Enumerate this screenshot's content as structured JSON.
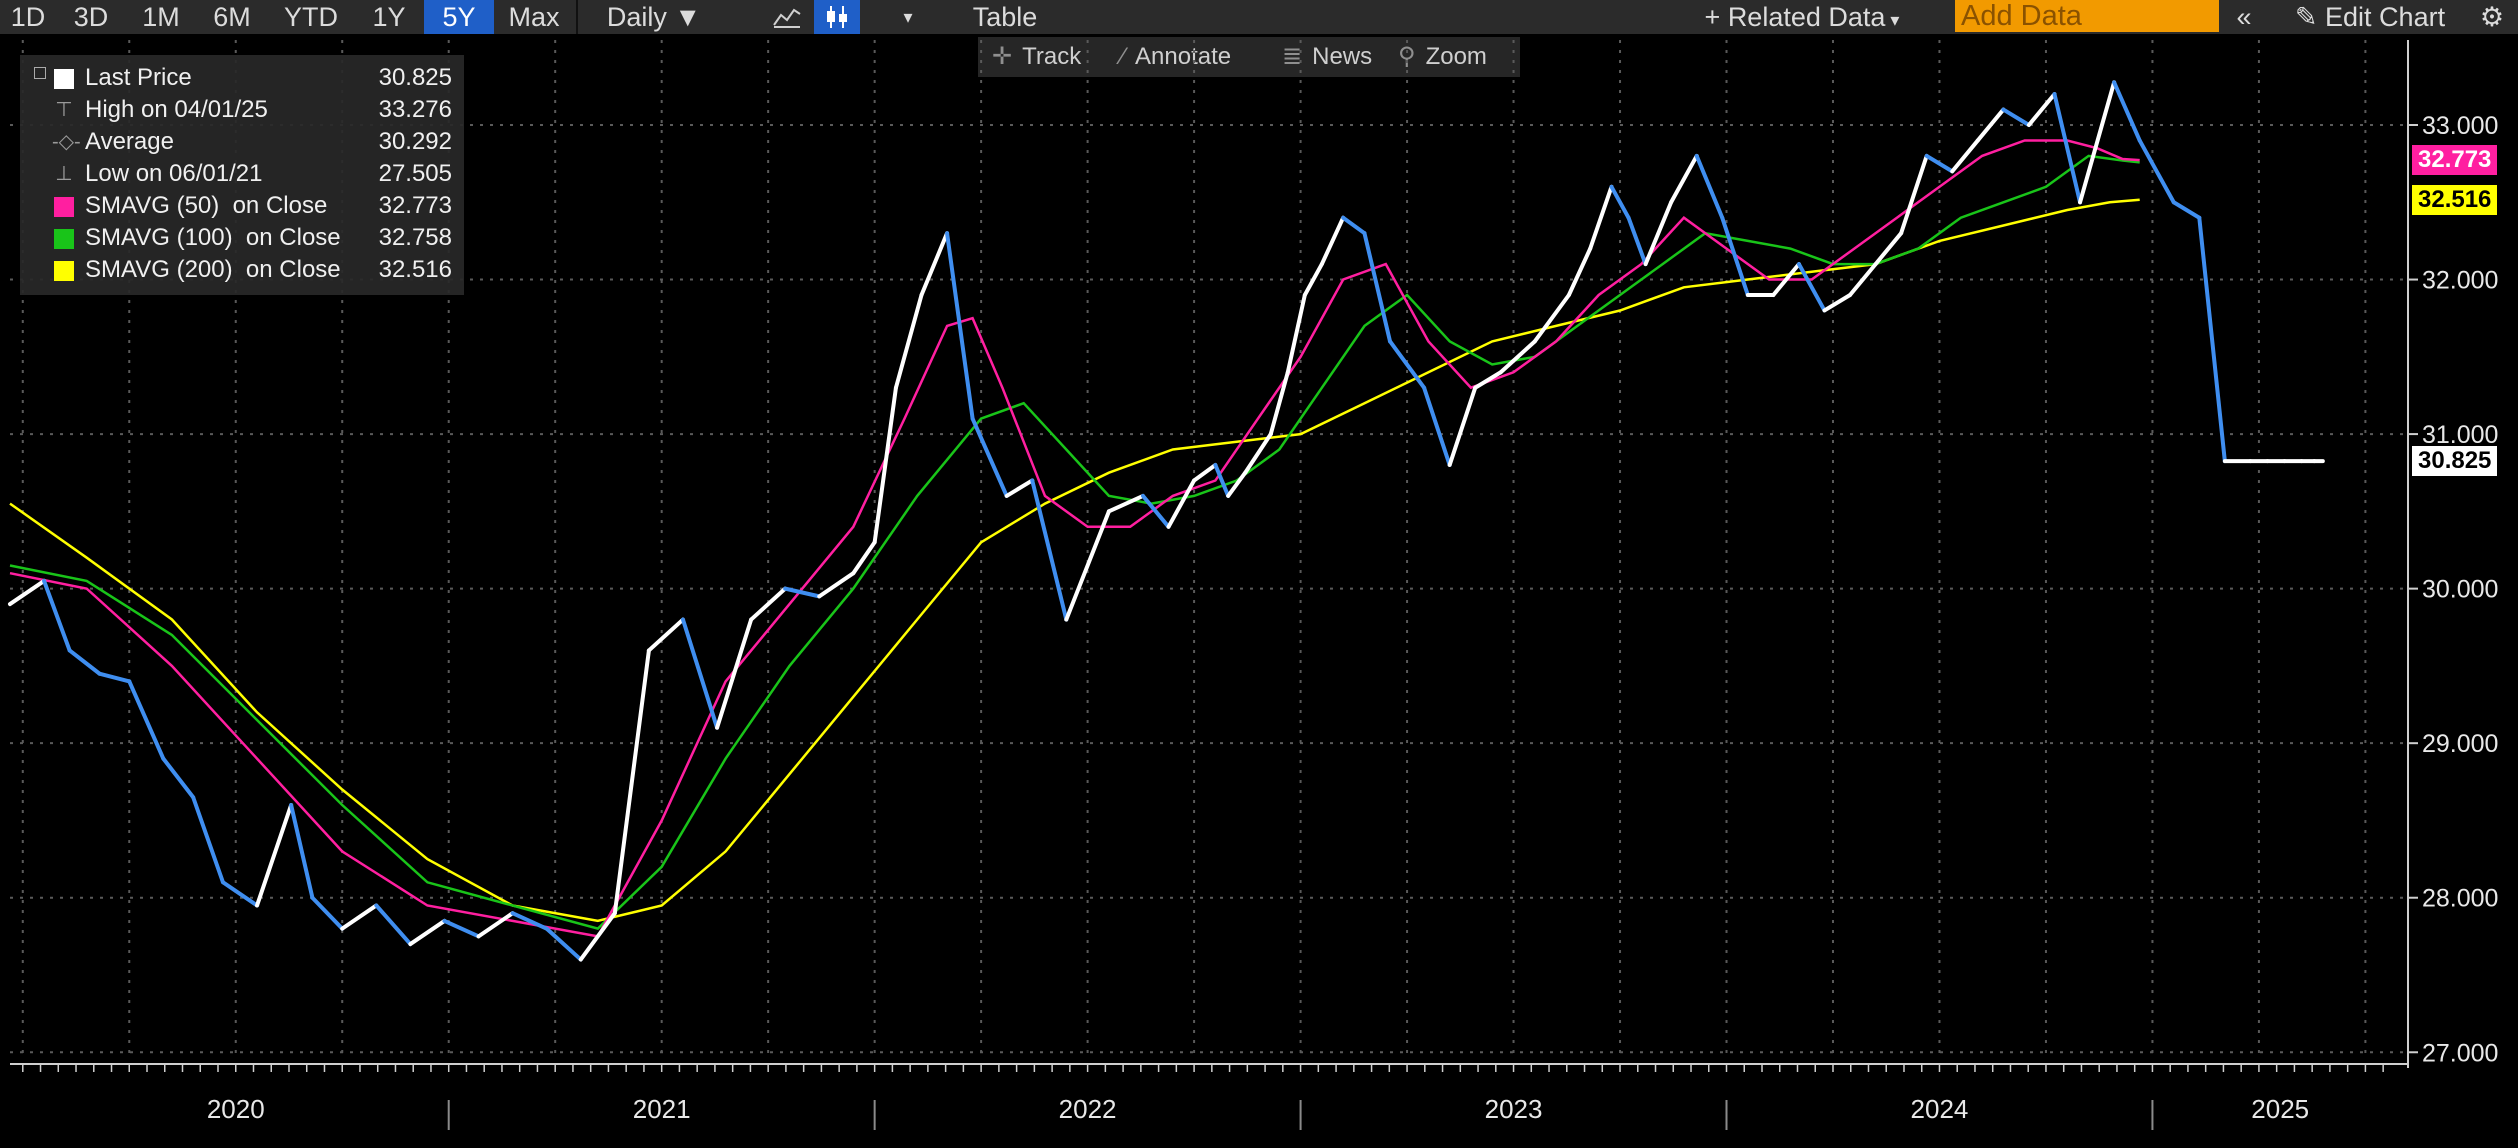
{
  "toolbar": {
    "ranges": [
      "1D",
      "3D",
      "1M",
      "6M",
      "YTD",
      "1Y",
      "5Y",
      "Max"
    ],
    "active_range": "5Y",
    "frequency": "Daily ▼",
    "table_label": "Table",
    "related_data_label": "Related Data",
    "add_data_placeholder": "Add Data",
    "edit_chart_label": "Edit Chart"
  },
  "subbar": {
    "track": "Track",
    "annotate": "Annotate",
    "news": "News",
    "zoom": "Zoom"
  },
  "legend": [
    {
      "label": "Last Price",
      "value": "30.825",
      "color": "#ffffff",
      "marker": "square"
    },
    {
      "label": "High on 04/01/25",
      "value": "33.276",
      "color": "#9a9a9a",
      "marker": "high"
    },
    {
      "label": "Average",
      "value": "30.292",
      "color": "#9a9a9a",
      "marker": "average"
    },
    {
      "label": "Low on 06/01/21",
      "value": "27.505",
      "color": "#9a9a9a",
      "marker": "low"
    },
    {
      "label": "SMAVG (50)  on Close",
      "value": "32.773",
      "color": "#ff1fa0",
      "marker": "square"
    },
    {
      "label": "SMAVG (100)  on Close",
      "value": "32.758",
      "color": "#19c419",
      "marker": "square"
    },
    {
      "label": "SMAVG (200)  on Close",
      "value": "32.516",
      "color": "#ffff00",
      "marker": "square"
    }
  ],
  "price_tags": [
    {
      "value": "32.773",
      "bg": "#ff1fa0",
      "fg": "#ffffff"
    },
    {
      "value": "32.516",
      "bg": "#ffff00",
      "fg": "#000000"
    },
    {
      "value": "30.825",
      "bg": "#ffffff",
      "fg": "#000000"
    }
  ],
  "chart_data": {
    "type": "line",
    "y_ticks": [
      "27.000",
      "28.000",
      "29.000",
      "30.000",
      "31.000",
      "32.000",
      "33.000"
    ],
    "ylim": [
      26.95,
      33.55
    ],
    "x_labels": [
      "2020",
      "2021",
      "2022",
      "2023",
      "2024",
      "2025"
    ],
    "xlim": [
      2019.72,
      2025.35
    ],
    "grid": true,
    "colors": {
      "price": "#ffffff",
      "price_down": "#3f8ef0",
      "sma50": "#ff1fa0",
      "sma100": "#19c419",
      "sma200": "#ffff00"
    },
    "series": [
      {
        "name": "Last Price",
        "key": "price",
        "x": [
          2019.72,
          2019.8,
          2019.86,
          2019.93,
          2020.0,
          2020.08,
          2020.15,
          2020.22,
          2020.3,
          2020.38,
          2020.43,
          2020.5,
          2020.58,
          2020.66,
          2020.74,
          2020.82,
          2020.9,
          2020.98,
          2021.06,
          2021.14,
          2021.22,
          2021.3,
          2021.38,
          2021.46,
          2021.54,
          2021.62,
          2021.7,
          2021.75,
          2021.8,
          2021.86,
          2021.92,
          2021.98,
          2022.06,
          2022.12,
          2022.2,
          2022.3,
          2022.38,
          2022.44,
          2022.5,
          2022.55,
          2022.58,
          2022.62,
          2022.68,
          2022.72,
          2022.76,
          2022.8,
          2022.85,
          2022.9,
          2022.96,
          2023.04,
          2023.1,
          2023.16,
          2023.22,
          2023.3,
          2023.38,
          2023.43,
          2023.48,
          2023.52,
          2023.56,
          2023.62,
          2023.68,
          2023.74,
          2023.8,
          2023.86,
          2023.92,
          2023.98,
          2024.04,
          2024.1,
          2024.16,
          2024.22,
          2024.28,
          2024.34,
          2024.4,
          2024.46,
          2024.52,
          2024.58,
          2024.66,
          2024.72,
          2024.8,
          2024.86,
          2024.92,
          2024.98,
          2025.02,
          2025.06,
          2025.1,
          2025.13,
          2025.15
        ],
        "y": [
          29.9,
          30.05,
          29.6,
          29.45,
          29.4,
          28.9,
          28.65,
          28.1,
          27.95,
          28.6,
          28.0,
          27.8,
          27.95,
          27.7,
          27.85,
          27.75,
          27.9,
          27.8,
          27.6,
          27.9,
          29.6,
          29.8,
          29.1,
          29.8,
          30.0,
          29.95,
          30.1,
          30.3,
          31.3,
          31.9,
          32.3,
          31.1,
          30.6,
          30.7,
          29.8,
          30.5,
          30.6,
          30.4,
          30.7,
          30.8,
          30.6,
          30.75,
          31.0,
          31.4,
          31.9,
          32.1,
          32.4,
          32.3,
          31.6,
          31.3,
          30.8,
          31.3,
          31.4,
          31.6,
          31.9,
          32.2,
          32.6,
          32.4,
          32.1,
          32.5,
          32.8,
          32.4,
          31.9,
          31.9,
          32.1,
          31.8,
          31.9,
          32.1,
          32.3,
          32.8,
          32.7,
          32.9,
          33.1,
          33.0,
          33.2,
          32.5,
          33.276,
          32.9,
          32.5,
          32.4,
          30.825,
          30.825,
          30.825,
          30.825,
          30.825,
          30.825,
          30.825
        ]
      },
      {
        "name": "SMAVG (50)  on Close",
        "key": "sma50",
        "x": [
          2019.72,
          2019.9,
          2020.1,
          2020.3,
          2020.5,
          2020.7,
          2020.9,
          2021.1,
          2021.25,
          2021.4,
          2021.55,
          2021.7,
          2021.82,
          2021.92,
          2021.98,
          2022.05,
          2022.15,
          2022.25,
          2022.35,
          2022.45,
          2022.55,
          2022.65,
          2022.75,
          2022.85,
          2022.95,
          2023.05,
          2023.15,
          2023.25,
          2023.35,
          2023.45,
          2023.55,
          2023.65,
          2023.75,
          2023.85,
          2023.95,
          2024.05,
          2024.15,
          2024.25,
          2024.35,
          2024.45,
          2024.55,
          2024.62,
          2024.68,
          2024.72
        ],
        "y": [
          30.1,
          30.0,
          29.5,
          28.9,
          28.3,
          27.95,
          27.85,
          27.75,
          28.5,
          29.4,
          29.9,
          30.4,
          31.1,
          31.7,
          31.75,
          31.3,
          30.6,
          30.4,
          30.4,
          30.6,
          30.7,
          31.1,
          31.5,
          32.0,
          32.1,
          31.6,
          31.3,
          31.4,
          31.6,
          31.9,
          32.1,
          32.4,
          32.2,
          32.0,
          32.0,
          32.2,
          32.4,
          32.6,
          32.8,
          32.9,
          32.9,
          32.85,
          32.78,
          32.773
        ]
      },
      {
        "name": "SMAVG (100)  on Close",
        "key": "sma100",
        "x": [
          2019.72,
          2019.9,
          2020.1,
          2020.3,
          2020.5,
          2020.7,
          2020.9,
          2021.1,
          2021.25,
          2021.4,
          2021.55,
          2021.7,
          2021.85,
          2022.0,
          2022.1,
          2022.2,
          2022.3,
          2022.4,
          2022.5,
          2022.6,
          2022.7,
          2022.8,
          2022.9,
          2023.0,
          2023.1,
          2023.2,
          2023.3,
          2023.4,
          2023.5,
          2023.6,
          2023.7,
          2023.8,
          2023.9,
          2024.0,
          2024.1,
          2024.2,
          2024.3,
          2024.4,
          2024.5,
          2024.6,
          2024.68,
          2024.72
        ],
        "y": [
          30.15,
          30.05,
          29.7,
          29.15,
          28.6,
          28.1,
          27.95,
          27.8,
          28.2,
          28.9,
          29.5,
          30.0,
          30.6,
          31.1,
          31.2,
          30.9,
          30.6,
          30.55,
          30.6,
          30.7,
          30.9,
          31.3,
          31.7,
          31.9,
          31.6,
          31.45,
          31.5,
          31.7,
          31.9,
          32.1,
          32.3,
          32.25,
          32.2,
          32.1,
          32.1,
          32.2,
          32.4,
          32.5,
          32.6,
          32.8,
          32.77,
          32.758
        ]
      },
      {
        "name": "SMAVG (200)  on Close",
        "key": "sma200",
        "x": [
          2019.72,
          2019.9,
          2020.1,
          2020.3,
          2020.5,
          2020.7,
          2020.9,
          2021.1,
          2021.25,
          2021.4,
          2021.55,
          2021.7,
          2021.85,
          2022.0,
          2022.15,
          2022.3,
          2022.45,
          2022.6,
          2022.75,
          2022.9,
          2023.05,
          2023.2,
          2023.35,
          2023.5,
          2023.65,
          2023.8,
          2023.95,
          2024.1,
          2024.25,
          2024.4,
          2024.55,
          2024.65,
          2024.72
        ],
        "y": [
          30.55,
          30.2,
          29.8,
          29.2,
          28.7,
          28.25,
          27.95,
          27.85,
          27.95,
          28.3,
          28.8,
          29.3,
          29.8,
          30.3,
          30.55,
          30.75,
          30.9,
          30.95,
          31.0,
          31.2,
          31.4,
          31.6,
          31.7,
          31.8,
          31.95,
          32.0,
          32.05,
          32.1,
          32.25,
          32.35,
          32.45,
          32.5,
          32.516
        ]
      }
    ]
  }
}
